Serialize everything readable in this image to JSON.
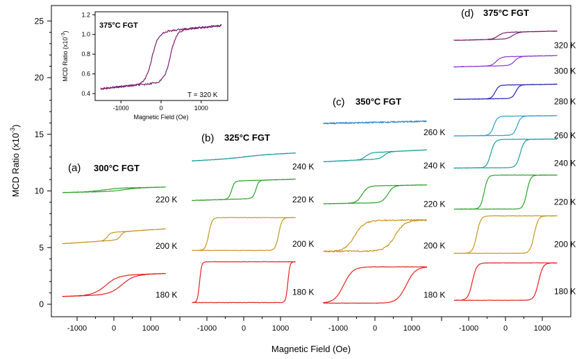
{
  "chart_data": {
    "type": "line",
    "title": "",
    "xlabel": "Magnetic Field (Oe)",
    "ylabel": "MCD Ratio (x10-3)",
    "ylabel_main": "MCD Ratio (x10",
    "ylabel_exp": "-3",
    "ylabel_close": ")",
    "ylim": [
      -1.4,
      25.6
    ],
    "yticks": [
      0,
      5,
      10,
      15,
      20,
      25
    ],
    "xticks": [
      -1000,
      0,
      1000
    ],
    "xlim": [
      -1600,
      1600
    ],
    "panels": [
      {
        "label": "(a)",
        "sample": "300°C FGT",
        "loops": [
          {
            "temperature": "220 K",
            "color": "#2ca02c",
            "offset": 10.1,
            "half": 0.15,
            "hc": 300,
            "w": 400,
            "slope": 6.5e-05
          },
          {
            "temperature": "200 K",
            "color": "#c8961e",
            "offset": 6.0,
            "half": 0.35,
            "hc": 180,
            "w": 90,
            "slope": 0.00022
          },
          {
            "temperature": "180 K",
            "color": "#e8201e",
            "offset": 1.7,
            "half": 0.85,
            "hc": 220,
            "w": 330,
            "slope": 0.00012
          }
        ]
      },
      {
        "label": "(b)",
        "sample": "325°C FGT",
        "loops": [
          {
            "temperature": "240 K",
            "color": "#1a9e9e",
            "offset": 13.0,
            "half": 0.1,
            "hc": 0,
            "w": 500,
            "slope": 0.00018
          },
          {
            "temperature": "220 K",
            "color": "#2ca02c",
            "offset": 10.1,
            "half": 0.8,
            "hc": 330,
            "w": 80,
            "slope": 0.0001
          },
          {
            "temperature": "200 K",
            "color": "#c8961e",
            "offset": 6.2,
            "half": 1.45,
            "hc": 950,
            "w": 90,
            "slope": 0.0
          },
          {
            "temperature": "180 K",
            "color": "#e8201e",
            "offset": 1.95,
            "half": 1.8,
            "hc": 1200,
            "w": 55,
            "slope": 0.0
          }
        ]
      },
      {
        "label": "(c)",
        "sample": "350°C FGT",
        "loops": [
          {
            "temperature": "260 K",
            "color": "#3a8fd0",
            "offset": 16.05,
            "half": 0.0,
            "hc": 0,
            "w": 500,
            "slope": 7e-05
          },
          {
            "temperature": "240 K",
            "color": "#1a9e9e",
            "offset": 13.1,
            "half": 0.3,
            "hc": 250,
            "w": 130,
            "slope": 0.00016
          },
          {
            "temperature": "220 K",
            "color": "#2ca02c",
            "offset": 9.7,
            "half": 0.75,
            "hc": 350,
            "w": 150,
            "slope": 6e-05
          },
          {
            "temperature": "200 K",
            "color": "#c8961e",
            "offset": 6.05,
            "half": 1.35,
            "hc": 550,
            "w": 260,
            "slope": 3e-05
          },
          {
            "temperature": "180 K",
            "color": "#e8201e",
            "offset": 1.7,
            "half": 1.6,
            "hc": 850,
            "w": 250,
            "slope": 0.0
          }
        ]
      },
      {
        "label": "(d)",
        "sample": "375°C FGT",
        "loops": [
          {
            "temperature": "320 K",
            "color": "#7a1e6e",
            "offset": 23.7,
            "half": 0.3,
            "hc": 200,
            "w": 150,
            "slope": 8e-05
          },
          {
            "temperature": "300 K",
            "color": "#8a35d8",
            "offset": 21.45,
            "half": 0.4,
            "hc": 250,
            "w": 130,
            "slope": 7e-05
          },
          {
            "temperature": "280 K",
            "color": "#2424b8",
            "offset": 18.75,
            "half": 0.6,
            "hc": 280,
            "w": 100,
            "slope": 5e-05
          },
          {
            "temperature": "260 K",
            "color": "#2a9fd0",
            "offset": 15.75,
            "half": 0.85,
            "hc": 320,
            "w": 100,
            "slope": 3e-05
          },
          {
            "temperature": "240 K",
            "color": "#1a9e9e",
            "offset": 13.3,
            "half": 1.25,
            "hc": 400,
            "w": 110,
            "slope": 2e-05
          },
          {
            "temperature": "220 K",
            "color": "#2ca02c",
            "offset": 9.9,
            "half": 1.5,
            "hc": 580,
            "w": 100,
            "slope": 0.0
          },
          {
            "temperature": "200 K",
            "color": "#c8961e",
            "offset": 6.15,
            "half": 1.65,
            "hc": 780,
            "w": 110,
            "slope": 0.0
          },
          {
            "temperature": "180 K",
            "color": "#e8201e",
            "offset": 2.0,
            "half": 1.65,
            "hc": 900,
            "w": 120,
            "slope": 0.0
          }
        ]
      }
    ],
    "inset": {
      "sample": "375°C FGT",
      "temperature_label": "T = 320 K",
      "color": "#7a1e6e",
      "xlabel": "Magnetic Field (Oe)",
      "ylabel": "MCD Ratio (x10-3)",
      "ylabel_main": "MCD Ratio (x10",
      "ylabel_exp": "-3",
      "ylabel_close": ")",
      "xlim": [
        -1600,
        1600
      ],
      "ylim": [
        0.33,
        1.23
      ],
      "xticks": [
        -1000,
        0,
        1000
      ],
      "yticks": [
        0.4,
        0.6,
        0.8,
        1.0,
        1.2
      ],
      "ytick_labels": [
        "0.4",
        "0.6",
        "0.8",
        "1.0",
        "1.2"
      ],
      "loop": {
        "center": 0.77,
        "half": 0.26,
        "hc": 230,
        "w": 160,
        "slope": 4e-05
      }
    }
  }
}
